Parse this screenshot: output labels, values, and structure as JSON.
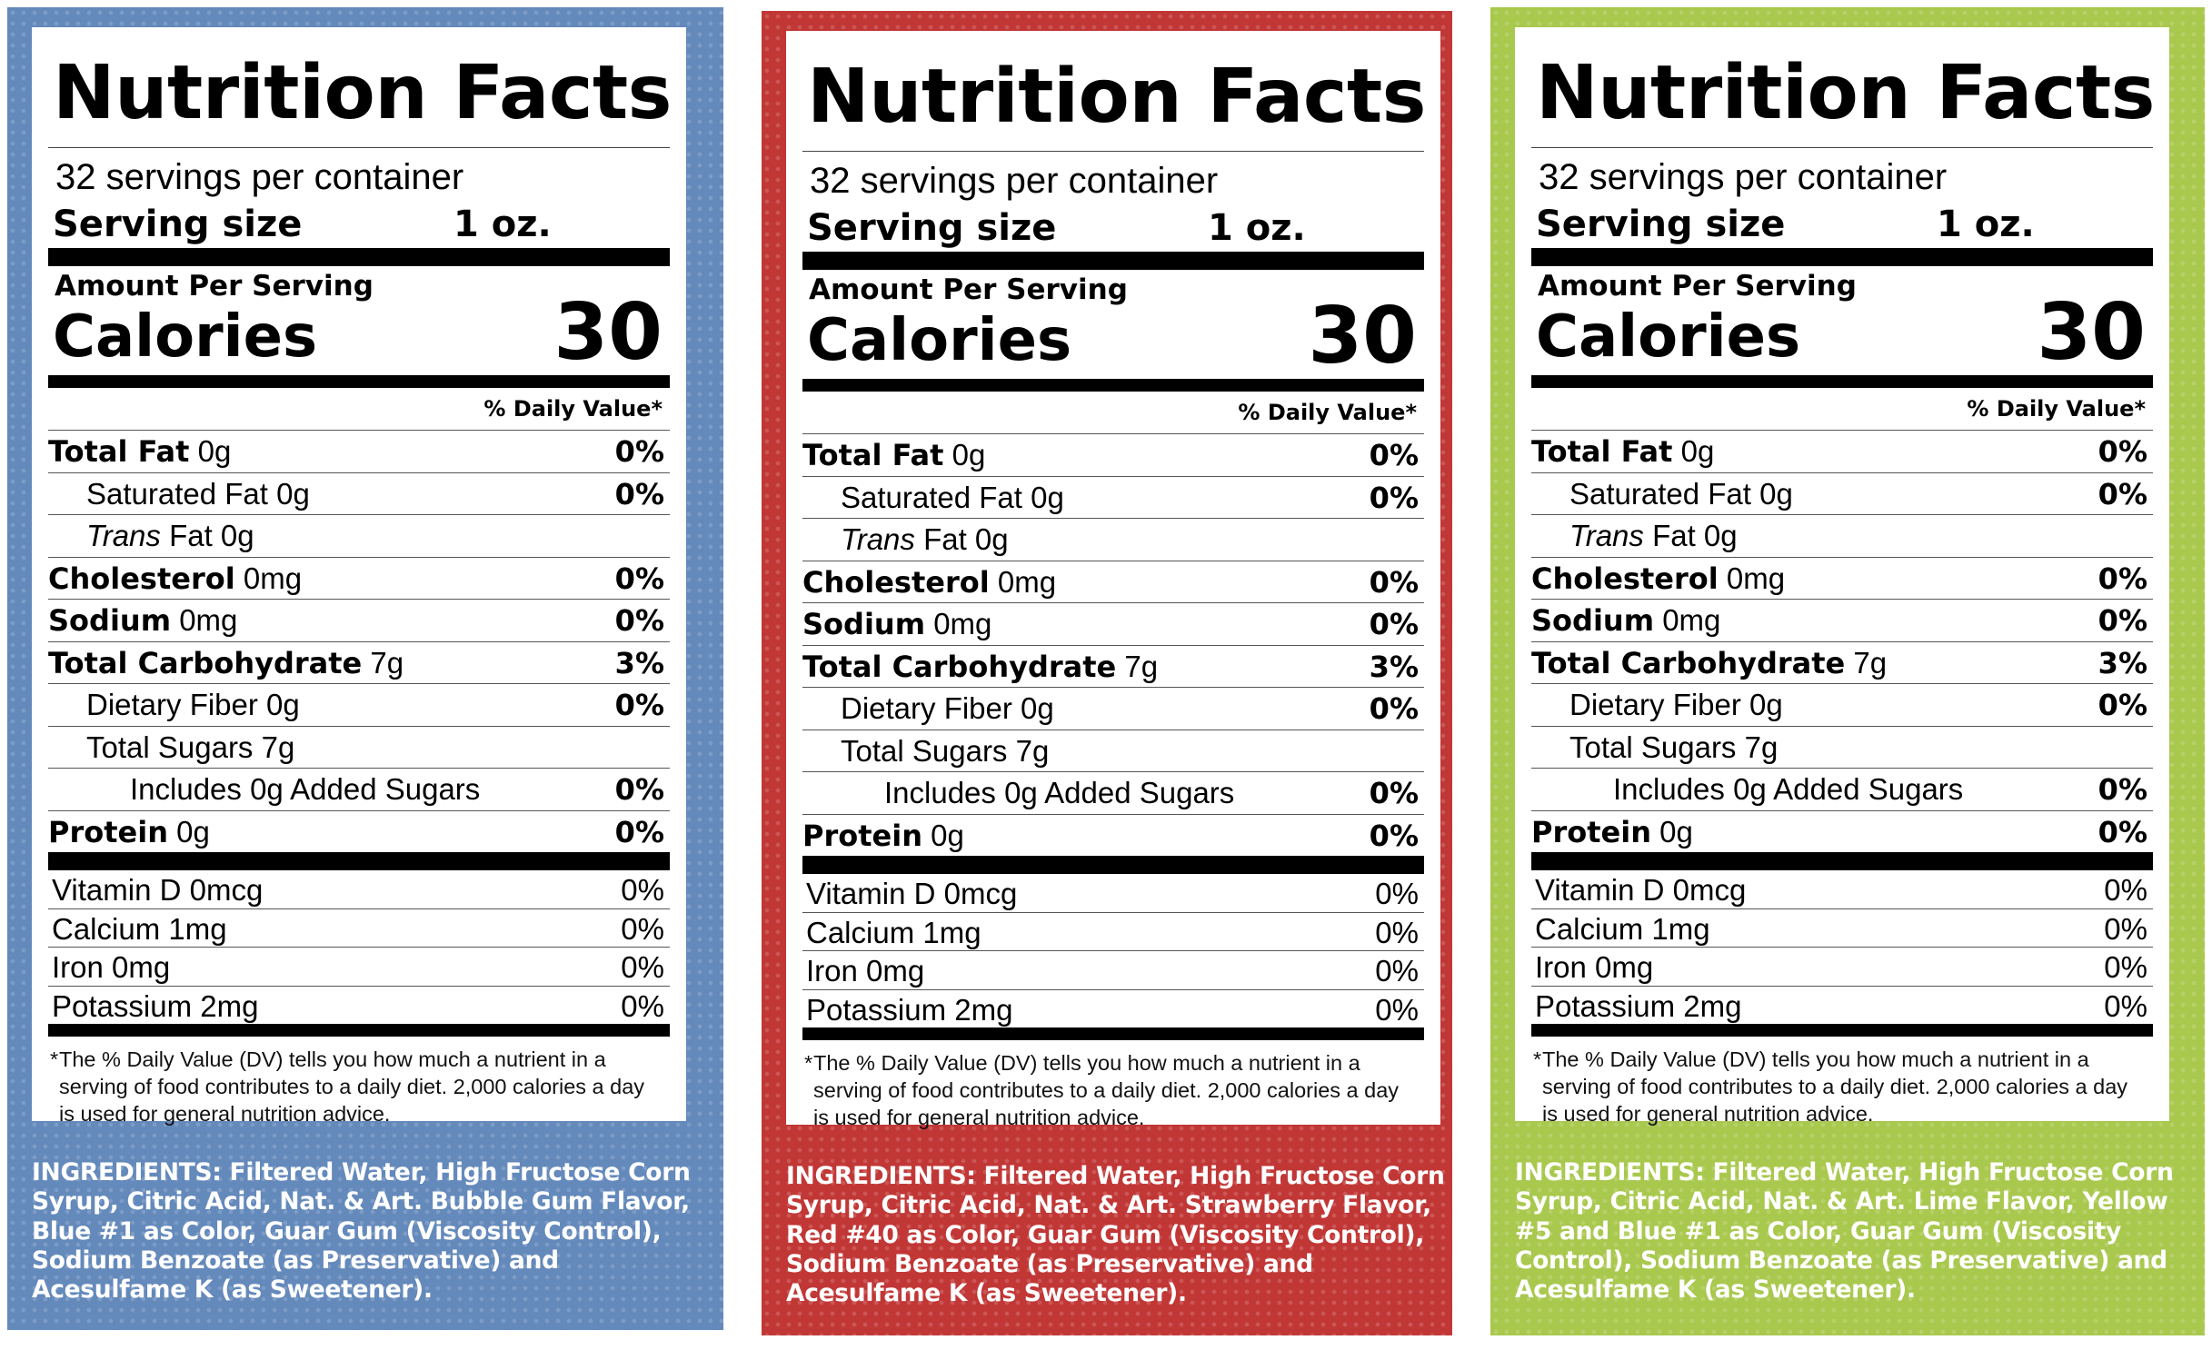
{
  "colors": {
    "blue": "#6489bb",
    "red": "#c13736",
    "green": "#a9c84e"
  },
  "labels": [
    {
      "title": "Nutrition Facts",
      "servings": "32 servings per container",
      "serving_size_label": "Serving size",
      "serving_size_value": "1 oz.",
      "amount_per_serving": "Amount Per Serving",
      "calories_label": "Calories",
      "calories_value": "30",
      "dv_header": "% Daily Value*",
      "nutrients": {
        "total_fat": {
          "name": "Total Fat",
          "amount": "0g",
          "dv": "0%"
        },
        "sat_fat": {
          "name": "Saturated Fat 0g",
          "dv": "0%"
        },
        "trans_fat": {
          "name_italic": "Trans",
          "name_rest": "Fat 0g"
        },
        "cholesterol": {
          "name": "Cholesterol",
          "amount": "0mg",
          "dv": "0%"
        },
        "sodium": {
          "name": "Sodium",
          "amount": "0mg",
          "dv": "0%"
        },
        "total_carb": {
          "name": "Total Carbohydrate",
          "amount": "7g",
          "dv": "3%"
        },
        "fiber": {
          "name": "Dietary Fiber 0g",
          "dv": "0%"
        },
        "sugars": {
          "name": "Total Sugars 7g"
        },
        "added_sugars": {
          "name": "Includes 0g Added Sugars",
          "dv": "0%"
        },
        "protein": {
          "name": "Protein",
          "amount": "0g",
          "dv": "0%"
        }
      },
      "vitamins": [
        {
          "name": "Vitamin D 0mcg",
          "dv": "0%"
        },
        {
          "name": "Calcium 1mg",
          "dv": "0%"
        },
        {
          "name": "Iron 0mg",
          "dv": "0%"
        },
        {
          "name": "Potassium 2mg",
          "dv": "0%"
        }
      ],
      "footnote_star": "*",
      "footnote": "The % Daily Value (DV) tells you how much a nutrient in a serving of food contributes to a daily diet. 2,000 calories a day is used for general nutrition advice.",
      "ingredients": "INGREDIENTS: Filtered Water, High Fructose Corn Syrup, Citric Acid, Nat. & Art. Bubble Gum Flavor, Blue #1 as Color, Guar Gum (Viscosity Control), Sodium Benzoate (as Preservative) and Acesulfame K (as Sweetener)."
    },
    {
      "title": "Nutrition Facts",
      "servings": "32 servings per container",
      "serving_size_label": "Serving size",
      "serving_size_value": "1 oz.",
      "amount_per_serving": "Amount Per Serving",
      "calories_label": "Calories",
      "calories_value": "30",
      "dv_header": "% Daily Value*",
      "nutrients": {
        "total_fat": {
          "name": "Total Fat",
          "amount": "0g",
          "dv": "0%"
        },
        "sat_fat": {
          "name": "Saturated Fat 0g",
          "dv": "0%"
        },
        "trans_fat": {
          "name_italic": "Trans",
          "name_rest": "Fat 0g"
        },
        "cholesterol": {
          "name": "Cholesterol",
          "amount": "0mg",
          "dv": "0%"
        },
        "sodium": {
          "name": "Sodium",
          "amount": "0mg",
          "dv": "0%"
        },
        "total_carb": {
          "name": "Total Carbohydrate",
          "amount": "7g",
          "dv": "3%"
        },
        "fiber": {
          "name": "Dietary Fiber 0g",
          "dv": "0%"
        },
        "sugars": {
          "name": "Total Sugars 7g"
        },
        "added_sugars": {
          "name": "Includes 0g Added Sugars",
          "dv": "0%"
        },
        "protein": {
          "name": "Protein",
          "amount": "0g",
          "dv": "0%"
        }
      },
      "vitamins": [
        {
          "name": "Vitamin D 0mcg",
          "dv": "0%"
        },
        {
          "name": "Calcium 1mg",
          "dv": "0%"
        },
        {
          "name": "Iron 0mg",
          "dv": "0%"
        },
        {
          "name": "Potassium 2mg",
          "dv": "0%"
        }
      ],
      "footnote_star": "*",
      "footnote": "The % Daily Value (DV) tells you how much a nutrient in a serving of food contributes to a daily diet. 2,000 calories a day is used for general nutrition advice.",
      "ingredients": "INGREDIENTS: Filtered Water, High Fructose Corn Syrup, Citric Acid, Nat. & Art. Strawberry Flavor, Red #40 as Color, Guar Gum (Viscosity Control), Sodium Benzoate (as Preservative) and Acesulfame K (as Sweetener)."
    },
    {
      "title": "Nutrition Facts",
      "servings": "32 servings per container",
      "serving_size_label": "Serving size",
      "serving_size_value": "1 oz.",
      "amount_per_serving": "Amount Per Serving",
      "calories_label": "Calories",
      "calories_value": "30",
      "dv_header": "% Daily Value*",
      "nutrients": {
        "total_fat": {
          "name": "Total Fat",
          "amount": "0g",
          "dv": "0%"
        },
        "sat_fat": {
          "name": "Saturated Fat 0g",
          "dv": "0%"
        },
        "trans_fat": {
          "name_italic": "Trans",
          "name_rest": "Fat 0g"
        },
        "cholesterol": {
          "name": "Cholesterol",
          "amount": "0mg",
          "dv": "0%"
        },
        "sodium": {
          "name": "Sodium",
          "amount": "0mg",
          "dv": "0%"
        },
        "total_carb": {
          "name": "Total Carbohydrate",
          "amount": "7g",
          "dv": "3%"
        },
        "fiber": {
          "name": "Dietary Fiber 0g",
          "dv": "0%"
        },
        "sugars": {
          "name": "Total Sugars 7g"
        },
        "added_sugars": {
          "name": "Includes 0g Added Sugars",
          "dv": "0%"
        },
        "protein": {
          "name": "Protein",
          "amount": "0g",
          "dv": "0%"
        }
      },
      "vitamins": [
        {
          "name": "Vitamin D 0mcg",
          "dv": "0%"
        },
        {
          "name": "Calcium 1mg",
          "dv": "0%"
        },
        {
          "name": "Iron 0mg",
          "dv": "0%"
        },
        {
          "name": "Potassium 2mg",
          "dv": "0%"
        }
      ],
      "footnote_star": "*",
      "footnote": "The % Daily Value (DV) tells you how much a nutrient in a serving of food contributes to a daily diet. 2,000 calories a day is used for general nutrition advice.",
      "ingredients": "INGREDIENTS: Filtered Water, High Fructose Corn Syrup, Citric Acid, Nat. & Art. Lime Flavor, Yellow #5 and Blue #1 as Color, Guar Gum (Viscosity Control), Sodium Benzoate (as Preservative) and Acesulfame K (as Sweetener)."
    }
  ]
}
